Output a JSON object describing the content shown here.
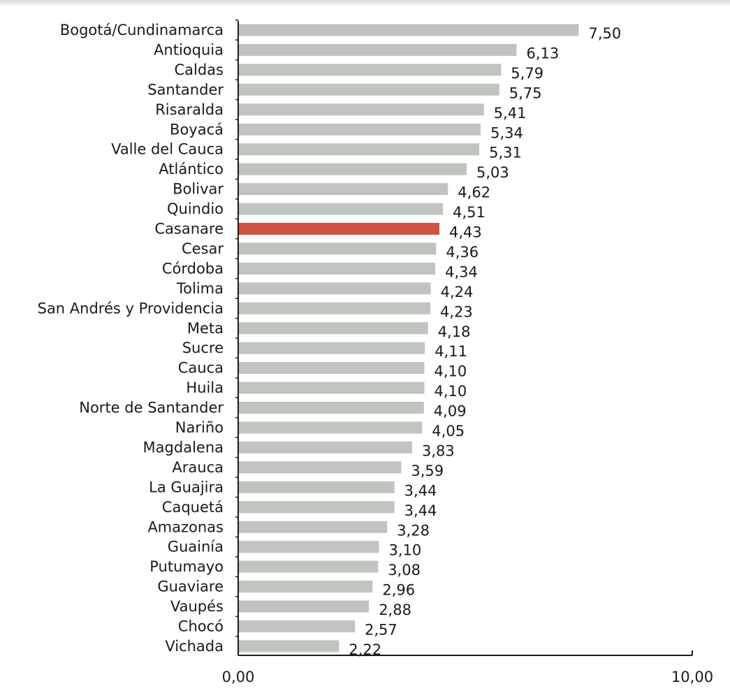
{
  "chart_data": {
    "type": "bar",
    "orientation": "horizontal",
    "title": "",
    "xlabel": "",
    "ylabel": "",
    "xlim": [
      0,
      10
    ],
    "grid": false,
    "legend": "none",
    "categories": [
      "Bogotá/Cundinamarca",
      "Antioquia",
      "Caldas",
      "Santander",
      "Risaralda",
      "Boyacá",
      "Valle del Cauca",
      "Atlántico",
      "Bolivar",
      "Quindio",
      "Casanare",
      "Cesar",
      "Córdoba",
      "Tolima",
      "San Andrés y Providencia",
      "Meta",
      "Sucre",
      "Cauca",
      "Huila",
      "Norte de Santander",
      "Nariño",
      "Magdalena",
      "Arauca",
      "La Guajira",
      "Caquetá",
      "Amazonas",
      "Guainía",
      "Putumayo",
      "Guaviare",
      "Vaupés",
      "Chocó",
      "Vichada"
    ],
    "values": [
      7.5,
      6.13,
      5.79,
      5.75,
      5.41,
      5.34,
      5.31,
      5.03,
      4.62,
      4.51,
      4.43,
      4.36,
      4.34,
      4.24,
      4.23,
      4.18,
      4.11,
      4.1,
      4.1,
      4.09,
      4.05,
      3.83,
      3.59,
      3.44,
      3.44,
      3.28,
      3.1,
      3.08,
      2.96,
      2.88,
      2.57,
      2.22
    ],
    "value_labels": [
      "7,50",
      "6,13",
      "5,79",
      "5,75",
      "5,41",
      "5,34",
      "5,31",
      "5,03",
      "4,62",
      "4,51",
      "4,43",
      "4,36",
      "4,34",
      "4,24",
      "4,23",
      "4,18",
      "4,11",
      "4,10",
      "4,10",
      "4,09",
      "4,05",
      "3,83",
      "3,59",
      "3,44",
      "3,44",
      "3,28",
      "3,10",
      "3,08",
      "2,96",
      "2,88",
      "2,57",
      "2,22"
    ],
    "highlight_category": "Casanare",
    "x_ticks": [
      0,
      10
    ],
    "x_tick_labels": [
      "0,00",
      "10,00"
    ],
    "colors": {
      "bar": "#bfc4bf",
      "highlight": "#cd5444",
      "axis": "#1a1a1a"
    }
  }
}
